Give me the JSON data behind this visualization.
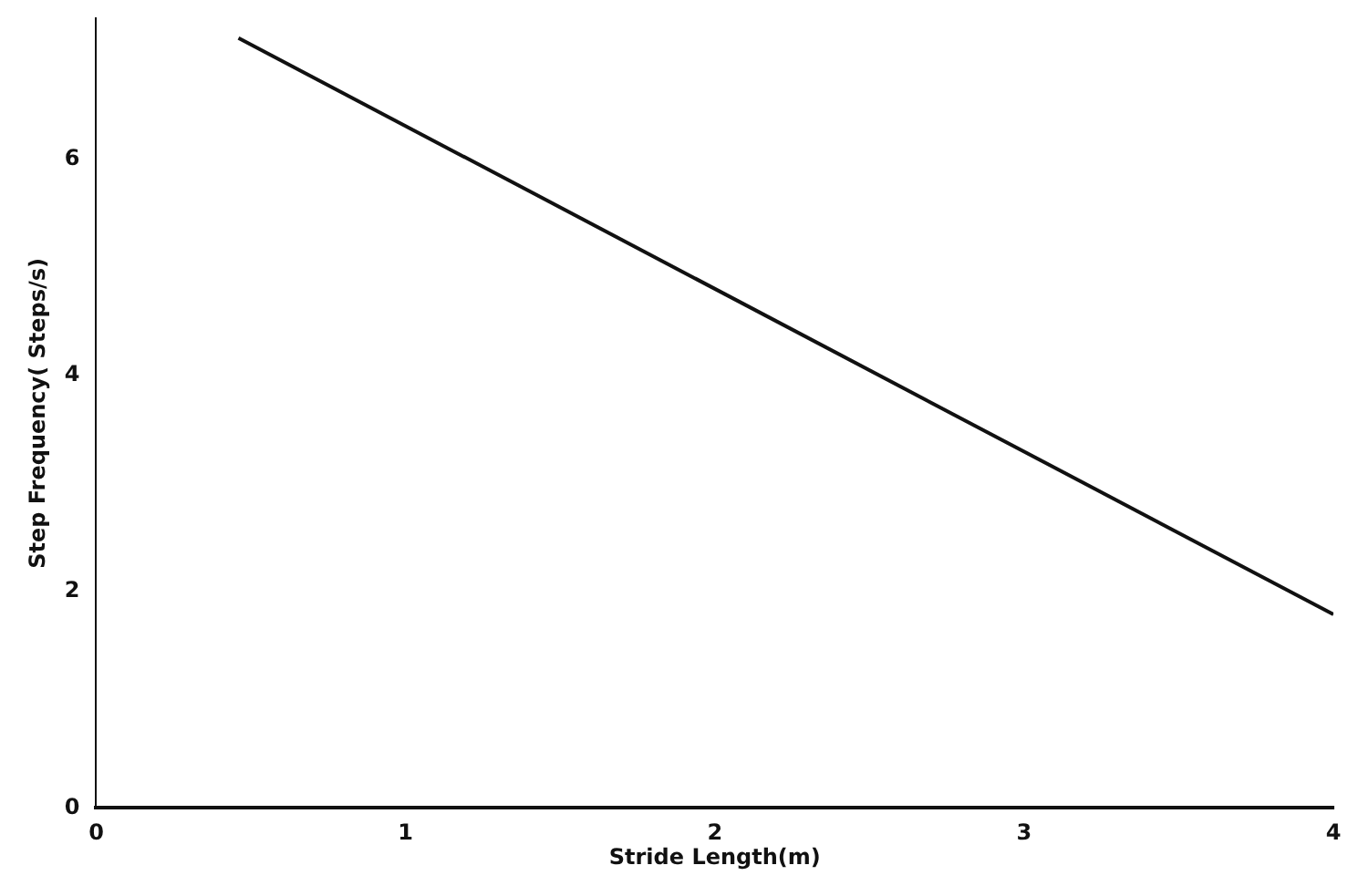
{
  "chart_data": {
    "type": "line",
    "xlabel": "Stride Length(m)",
    "ylabel": "Step Frequency( Steps/s)",
    "x": [
      0.46,
      4.0
    ],
    "series": [
      {
        "color": "#111111",
        "values": [
          7.12,
          1.79
        ]
      }
    ],
    "xlim": [
      0,
      4
    ],
    "xticks": [
      0,
      1,
      2,
      3,
      4
    ],
    "ylim": [
      0,
      7.3
    ],
    "yticks": [
      0,
      2,
      4,
      6
    ],
    "grid": false,
    "legend": false,
    "marker": "none",
    "line_style": "solid"
  }
}
